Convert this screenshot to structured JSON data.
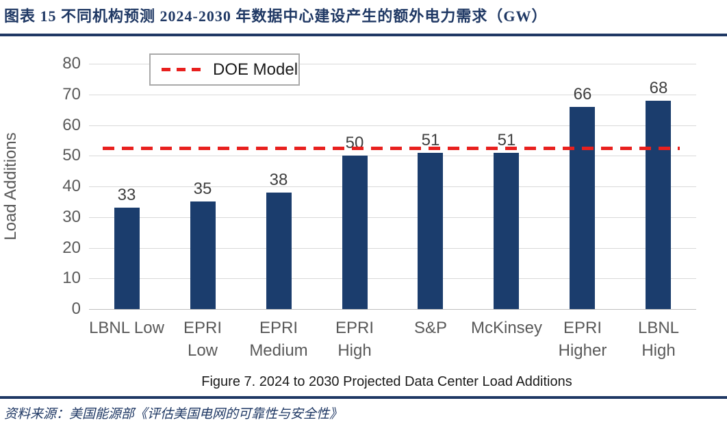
{
  "header": {
    "title": "图表 15  不同机构预测 2024-2030 年数据中心建设产生的额外电力需求（GW）"
  },
  "chart_data": {
    "type": "bar",
    "categories": [
      "LBNL Low",
      "EPRI\nLow",
      "EPRI\nMedium",
      "EPRI\nHigh",
      "S&P",
      "McKinsey",
      "EPRI\nHigher",
      "LBNL\nHigh"
    ],
    "values": [
      33,
      35,
      38,
      50,
      51,
      51,
      66,
      68
    ],
    "xlabel": "",
    "ylabel": "Load Additions",
    "ylim": [
      0,
      80
    ],
    "yticks": [
      0,
      10,
      20,
      30,
      40,
      50,
      60,
      70,
      80
    ],
    "grid": true,
    "bar_color": "#1B3D6D",
    "data_labels": true,
    "reference_line": {
      "name": "DOE Model",
      "value": 52.5,
      "style": "dashed",
      "color": "#E8201E"
    },
    "legend": {
      "entries": [
        "DOE Model"
      ],
      "position": "top-left-inside"
    },
    "caption": "Figure 7. 2024 to 2030 Projected Data Center Load Additions"
  },
  "footer": {
    "source": "资料来源：美国能源部《评估美国电网的可靠性与安全性》"
  },
  "colors": {
    "accent_navy": "#1F3864",
    "bar": "#1B3D6D",
    "reference_red": "#E8201E",
    "gridline": "#D9D9D9",
    "axis_text": "#595959"
  }
}
